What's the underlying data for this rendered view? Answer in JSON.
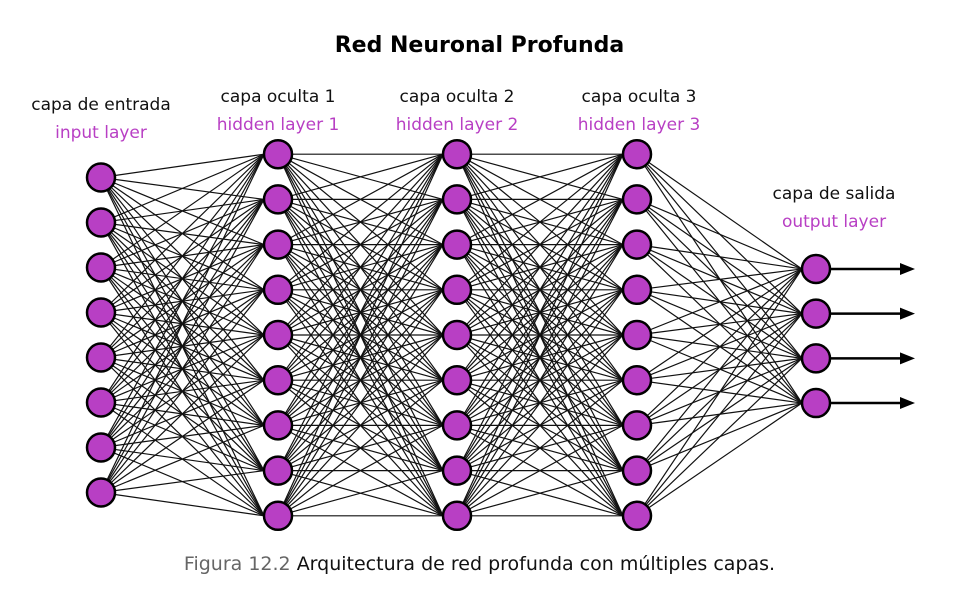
{
  "title": "Red Neuronal Profunda",
  "node_color": "#b83fc4",
  "layers": [
    {
      "label_es": "capa de entrada",
      "label_en": "input layer",
      "nodes": 8
    },
    {
      "label_es": "capa oculta 1",
      "label_en": "hidden layer 1",
      "nodes": 9
    },
    {
      "label_es": "capa oculta 2",
      "label_en": "hidden layer 2",
      "nodes": 9
    },
    {
      "label_es": "capa oculta 3",
      "label_en": "hidden layer 3",
      "nodes": 9
    },
    {
      "label_es": "capa de salida",
      "label_en": "output layer",
      "nodes": 4
    }
  ],
  "caption": {
    "number": "Figura 12.2",
    "text": "Arquitectura de red profunda con múltiples capas."
  }
}
